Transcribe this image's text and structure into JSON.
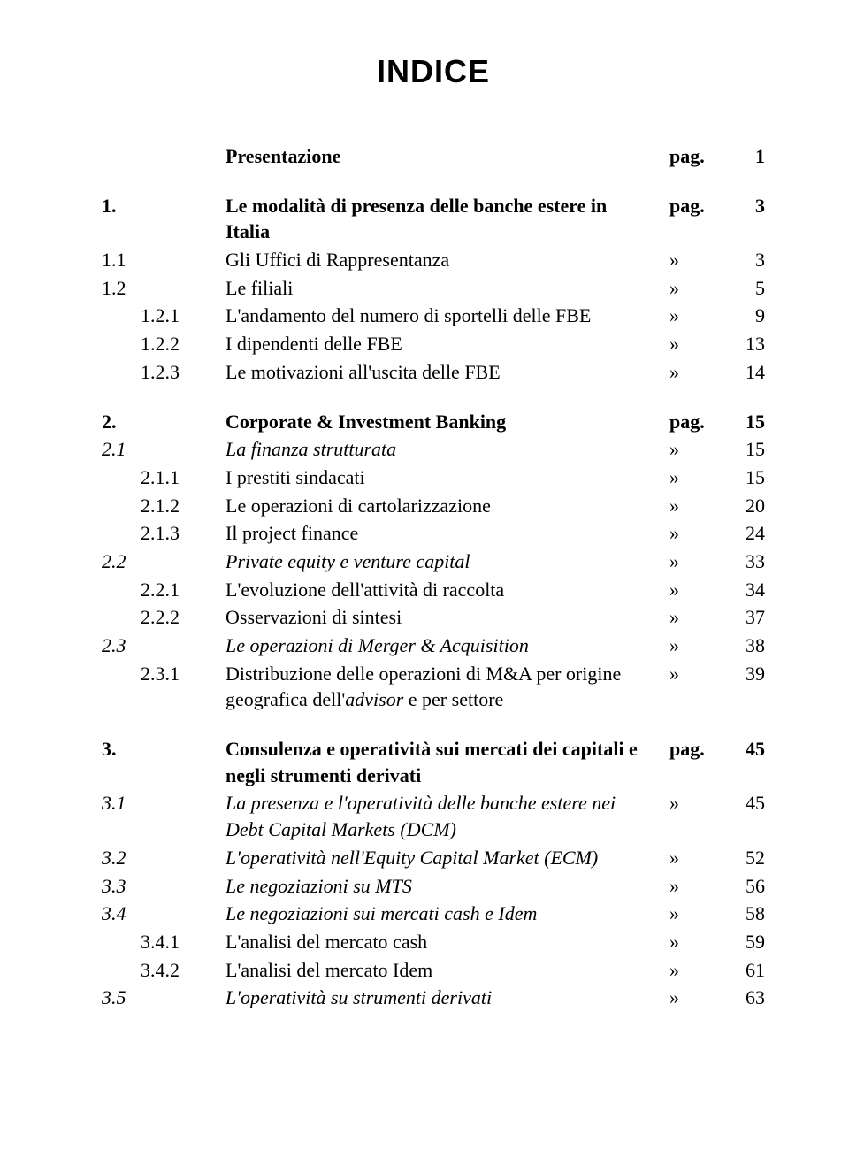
{
  "title": "INDICE",
  "rows": [
    {
      "num": "",
      "text": "Presentazione",
      "sym": "pag.",
      "page": "1",
      "bold": true,
      "italic": false,
      "numIndent": 0
    },
    {
      "gap": true
    },
    {
      "num": "1.",
      "text": "Le modalità di presenza delle banche estere in Italia",
      "sym": "pag.",
      "page": "3",
      "bold": true,
      "italic": false,
      "numIndent": 0
    },
    {
      "num": "1.1",
      "text": "Gli Uffici di Rappresentanza",
      "sym": "»",
      "page": "3",
      "bold": false,
      "italic": false,
      "numIndent": 0
    },
    {
      "num": "1.2",
      "text": "Le filiali",
      "sym": "»",
      "page": "5",
      "bold": false,
      "italic": false,
      "numIndent": 0
    },
    {
      "num": "1.2.1",
      "text": "L'andamento del numero di sportelli delle FBE",
      "sym": "»",
      "page": "9",
      "bold": false,
      "italic": false,
      "numIndent": 1
    },
    {
      "num": "1.2.2",
      "text": "I dipendenti delle FBE",
      "sym": "»",
      "page": "13",
      "bold": false,
      "italic": false,
      "numIndent": 1
    },
    {
      "num": "1.2.3",
      "text": "Le motivazioni all'uscita delle FBE",
      "sym": "»",
      "page": "14",
      "bold": false,
      "italic": false,
      "numIndent": 1
    },
    {
      "gap": true
    },
    {
      "num": "2.",
      "text": "Corporate & Investment Banking",
      "sym": "pag.",
      "page": "15",
      "bold": true,
      "italic": false,
      "numIndent": 0
    },
    {
      "num": "2.1",
      "text": "La finanza strutturata",
      "sym": "»",
      "page": "15",
      "bold": false,
      "italic": true,
      "numIndent": 0
    },
    {
      "num": "2.1.1",
      "text": "I prestiti sindacati",
      "sym": "»",
      "page": "15",
      "bold": false,
      "italic": false,
      "numIndent": 1
    },
    {
      "num": "2.1.2",
      "text": "Le operazioni di cartolarizzazione",
      "sym": "»",
      "page": "20",
      "bold": false,
      "italic": false,
      "numIndent": 1
    },
    {
      "num": "2.1.3",
      "text": "Il project finance",
      "sym": "»",
      "page": "24",
      "bold": false,
      "italic": false,
      "numIndent": 1
    },
    {
      "num": "2.2",
      "text": "Private equity e venture capital",
      "sym": "»",
      "page": "33",
      "bold": false,
      "italic": true,
      "numIndent": 0
    },
    {
      "num": "2.2.1",
      "text": "L'evoluzione dell'attività di raccolta",
      "sym": "»",
      "page": "34",
      "bold": false,
      "italic": false,
      "numIndent": 1
    },
    {
      "num": "2.2.2",
      "text": "Osservazioni di sintesi",
      "sym": "»",
      "page": "37",
      "bold": false,
      "italic": false,
      "numIndent": 1
    },
    {
      "num": "2.3",
      "text": "Le operazioni di Merger & Acquisition",
      "sym": "»",
      "page": "38",
      "bold": false,
      "italic": true,
      "numIndent": 0
    },
    {
      "num": "2.3.1",
      "text": "Distribuzione delle operazioni di M&A per origine geografica dell'<i>advisor</i> e per settore",
      "sym": "»",
      "page": "39",
      "bold": false,
      "italic": false,
      "numIndent": 1,
      "html": true
    },
    {
      "gap": true
    },
    {
      "num": "3.",
      "text": "Consulenza e operatività sui mercati dei capitali e negli strumenti derivati",
      "sym": "pag.",
      "page": "45",
      "bold": true,
      "italic": false,
      "numIndent": 0
    },
    {
      "num": "3.1",
      "text": "La presenza e l'operatività delle banche estere nei Debt Capital Markets (DCM)",
      "sym": "»",
      "page": "45",
      "bold": false,
      "italic": true,
      "numIndent": 0
    },
    {
      "num": "3.2",
      "text": "L'operatività nell'Equity Capital Market (ECM)",
      "sym": "»",
      "page": "52",
      "bold": false,
      "italic": true,
      "numIndent": 0
    },
    {
      "num": "3.3",
      "text": "Le negoziazioni su MTS",
      "sym": "»",
      "page": "56",
      "bold": false,
      "italic": true,
      "numIndent": 0
    },
    {
      "num": "3.4",
      "text": "Le negoziazioni sui mercati cash e Idem",
      "sym": "»",
      "page": "58",
      "bold": false,
      "italic": true,
      "numIndent": 0
    },
    {
      "num": "3.4.1",
      "text": "L'analisi del mercato cash",
      "sym": "»",
      "page": "59",
      "bold": false,
      "italic": false,
      "numIndent": 1
    },
    {
      "num": "3.4.2",
      "text": "L'analisi del mercato Idem",
      "sym": "»",
      "page": "61",
      "bold": false,
      "italic": false,
      "numIndent": 1
    },
    {
      "num": "3.5",
      "text": "L'operatività su strumenti derivati",
      "sym": "»",
      "page": "63",
      "bold": false,
      "italic": true,
      "numIndent": 0
    }
  ]
}
